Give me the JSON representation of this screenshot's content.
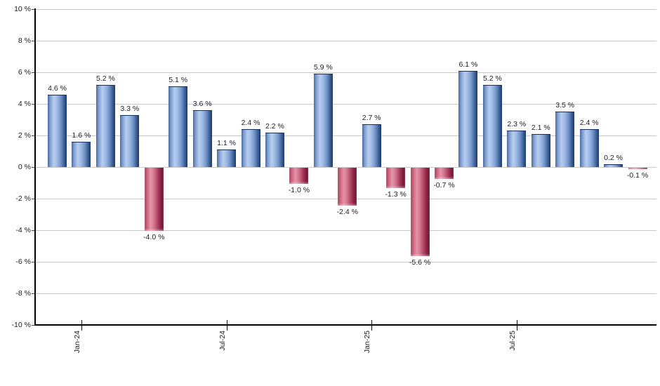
{
  "chart_data": {
    "type": "bar",
    "title": "",
    "unit": "%",
    "ylim": [
      -10,
      10
    ],
    "y_tick_step": 2,
    "grid": true,
    "legend": false,
    "y_tick_labels": [
      "10 %",
      "8 %",
      "6 %",
      "4 %",
      "2 %",
      "0 %",
      "-2 %",
      "-4 %",
      "-6 %",
      "-8 %",
      "-10 %"
    ],
    "x_tick_labels": [
      {
        "label": "Jan-24",
        "bar_index": 1
      },
      {
        "label": "Jul-24",
        "bar_index": 7
      },
      {
        "label": "Jan-25",
        "bar_index": 13
      },
      {
        "label": "Jul-25",
        "bar_index": 19
      }
    ],
    "bars": [
      {
        "value": 4.6,
        "label": "4.6 %"
      },
      {
        "value": 1.6,
        "label": "1.6 %"
      },
      {
        "value": 5.2,
        "label": "5.2 %"
      },
      {
        "value": 3.3,
        "label": "3.3 %"
      },
      {
        "value": -4.0,
        "label": "-4.0 %"
      },
      {
        "value": 5.1,
        "label": "5.1 %"
      },
      {
        "value": 3.6,
        "label": "3.6 %"
      },
      {
        "value": 1.1,
        "label": "1.1 %"
      },
      {
        "value": 2.4,
        "label": "2.4 %"
      },
      {
        "value": 2.2,
        "label": "2.2 %"
      },
      {
        "value": -1.0,
        "label": "-1.0 %"
      },
      {
        "value": 5.9,
        "label": "5.9 %"
      },
      {
        "value": -2.4,
        "label": "-2.4 %"
      },
      {
        "value": 2.7,
        "label": "2.7 %"
      },
      {
        "value": -1.3,
        "label": "-1.3 %"
      },
      {
        "value": -5.6,
        "label": "-5.6 %"
      },
      {
        "value": -0.7,
        "label": "-0.7 %"
      },
      {
        "value": 6.1,
        "label": "6.1 %"
      },
      {
        "value": 5.2,
        "label": "5.2 %"
      },
      {
        "value": 2.3,
        "label": "2.3 %"
      },
      {
        "value": 2.1,
        "label": "2.1 %"
      },
      {
        "value": 3.5,
        "label": "3.5 %"
      },
      {
        "value": 2.4,
        "label": "2.4 %"
      },
      {
        "value": 0.2,
        "label": "0.2 %"
      },
      {
        "value": -0.1,
        "label": "-0.1 %"
      }
    ],
    "colors": {
      "positive_bar": "#6c91c4",
      "positive_bar_highlight": "#b7cdee",
      "positive_bar_dark": "#1d3d70",
      "negative_bar": "#b95071",
      "negative_bar_highlight": "#e495a7",
      "negative_bar_dark": "#6f1531",
      "gridline": "#c9c9c9",
      "axis": "#000000",
      "text": "#1b1b26",
      "background": "#ffffff"
    }
  }
}
